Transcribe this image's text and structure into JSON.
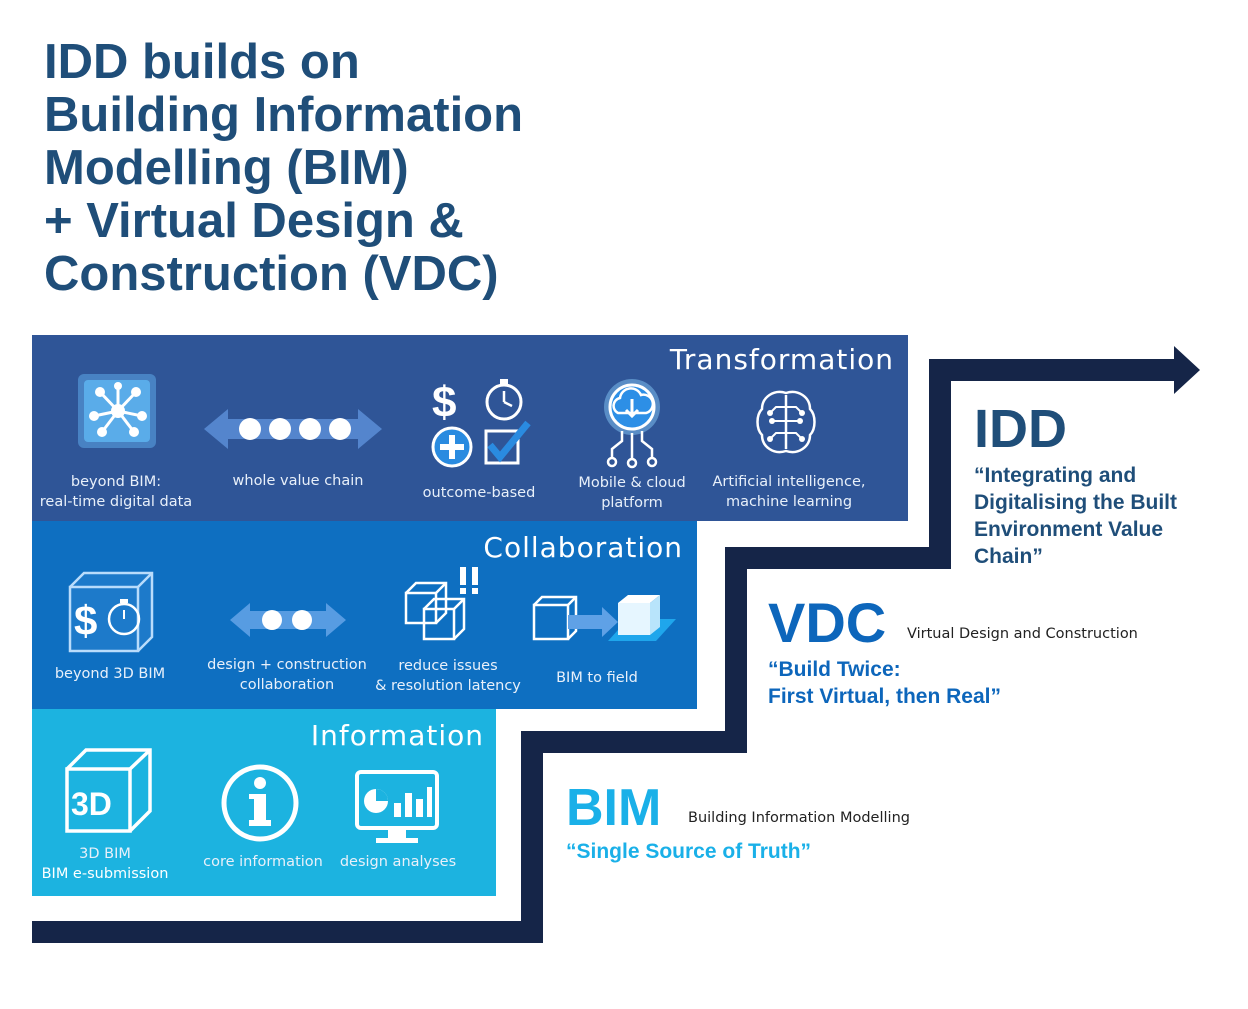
{
  "title": {
    "lines": [
      "IDD builds on",
      "Building Information",
      "Modelling (BIM)",
      "+ Virtual Design &",
      "Construction (VDC)"
    ]
  },
  "colors": {
    "title": "#1f4e79",
    "transformation_band": "#2f5597",
    "collaboration_band": "#0e6fc1",
    "information_band": "#1cb3e0",
    "stair_line": "#152548",
    "bim_accent": "#1ab0e8",
    "vdc_accent": "#0d66bb",
    "idd_accent": "#1f4e79"
  },
  "bands": {
    "transformation": {
      "title": "Transformation",
      "items": [
        {
          "icon": "network-cube-icon",
          "lines": [
            "beyond BIM:",
            "real-time digital data"
          ]
        },
        {
          "icon": "double-arrow-dots-icon",
          "lines": [
            "whole value chain"
          ]
        },
        {
          "icon": "dollar-stopwatch-plus-check-icon",
          "lines": [
            "outcome-based"
          ]
        },
        {
          "icon": "cloud-download-circuit-icon",
          "lines": [
            "Mobile & cloud",
            "platform"
          ]
        },
        {
          "icon": "brain-circuit-icon",
          "lines": [
            "Artificial intelligence,",
            "machine learning"
          ]
        }
      ]
    },
    "collaboration": {
      "title": "Collaboration",
      "items": [
        {
          "icon": "cube-dollar-stopwatch-icon",
          "lines": [
            "beyond 3D BIM"
          ]
        },
        {
          "icon": "double-arrow-dots-icon",
          "lines": [
            "design + construction",
            "collaboration"
          ]
        },
        {
          "icon": "overlapping-cubes-alert-icon",
          "lines": [
            "reduce issues",
            "& resolution latency"
          ]
        },
        {
          "icon": "cube-to-field-arrow-icon",
          "lines": [
            "BIM to field"
          ]
        }
      ]
    },
    "information": {
      "title": "Information",
      "items": [
        {
          "icon": "cube-3d-icon",
          "lines": [
            "3D BIM",
            "BIM e-submission"
          ]
        },
        {
          "icon": "info-circle-icon",
          "lines": [
            "core information"
          ]
        },
        {
          "icon": "monitor-chart-icon",
          "lines": [
            "design analyses"
          ]
        }
      ]
    }
  },
  "levels": {
    "bim": {
      "name": "BIM",
      "subtitle": "Building Information Modelling",
      "quote": [
        "“Single Source of Truth”"
      ]
    },
    "vdc": {
      "name": "VDC",
      "subtitle": "Virtual Design and Construction",
      "quote": [
        "“Build Twice:",
        "First Virtual, then Real”"
      ]
    },
    "idd": {
      "name": "IDD",
      "subtitle": "",
      "quote": [
        "“Integrating and",
        "Digitalising the Built",
        "Environment Value",
        "Chain”"
      ]
    }
  }
}
